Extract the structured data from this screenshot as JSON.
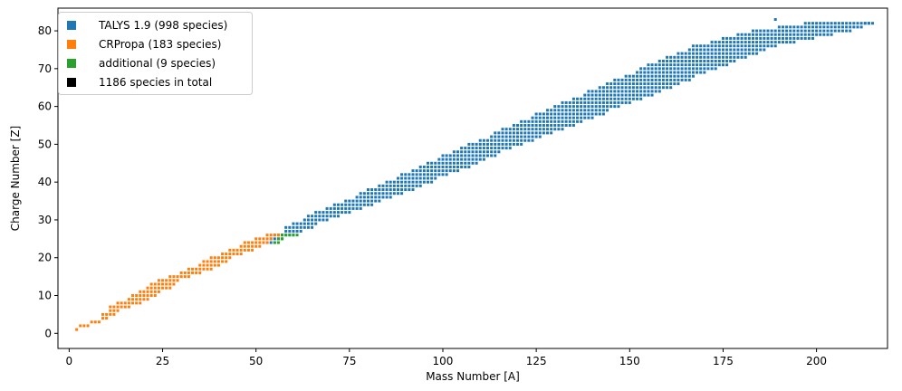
{
  "chart_data": {
    "type": "scatter",
    "title": "",
    "xlabel": "Mass Number [A]",
    "ylabel": "Charge Number [Z]",
    "xlim": [
      -3,
      219
    ],
    "ylim": [
      -4,
      86
    ],
    "xticks": [
      0,
      25,
      50,
      75,
      100,
      125,
      150,
      175,
      200
    ],
    "yticks": [
      0,
      10,
      20,
      30,
      40,
      50,
      60,
      70,
      80
    ],
    "grid": false,
    "legend_position": "top-left",
    "legend": [
      {
        "label": "TALYS 1.9 (998 species)",
        "color": "#1f77b4"
      },
      {
        "label": "CRPropa (183 species)",
        "color": "#ff7f0e"
      },
      {
        "label": "additional (9 species)",
        "color": "#2ca02c"
      },
      {
        "label": "1186 species in total",
        "color": "#000000"
      }
    ],
    "series": [
      {
        "color": "#1f77b4",
        "z_range": [
          24,
          82
        ],
        "band_from_z": 24,
        "band_center": [
          [
            24,
            53.5
          ],
          [
            30,
            65.5
          ],
          [
            40,
            91
          ],
          [
            50,
            114
          ],
          [
            60,
            139
          ],
          [
            70,
            163
          ],
          [
            76,
            178
          ],
          [
            80,
            196
          ],
          [
            82,
            206
          ]
        ],
        "band_halfwidth": [
          [
            24,
            1.5
          ],
          [
            30,
            4
          ],
          [
            40,
            6
          ],
          [
            50,
            7
          ],
          [
            60,
            9
          ],
          [
            70,
            10
          ],
          [
            76,
            11
          ],
          [
            80,
            13
          ],
          [
            82,
            9
          ]
        ],
        "note_points": [
          [
            214,
            82
          ],
          [
            213,
            82
          ],
          [
            189,
            83
          ]
        ]
      },
      {
        "color": "#ff7f0e",
        "z_range": [
          1,
          26
        ],
        "band_center": [
          [
            1,
            2.5
          ],
          [
            2,
            4
          ],
          [
            4,
            9
          ],
          [
            6,
            11.5
          ],
          [
            8,
            15.5
          ],
          [
            10,
            20
          ],
          [
            14,
            27
          ],
          [
            16,
            33
          ],
          [
            18,
            37
          ],
          [
            20,
            41
          ],
          [
            22,
            46
          ],
          [
            24,
            50
          ],
          [
            26,
            54.5
          ]
        ],
        "band_halfwidth": [
          [
            1,
            0.5
          ],
          [
            2,
            1
          ],
          [
            4,
            1
          ],
          [
            6,
            2
          ],
          [
            8,
            3
          ],
          [
            10,
            3
          ],
          [
            14,
            3
          ],
          [
            16,
            3
          ],
          [
            18,
            3
          ],
          [
            20,
            3
          ],
          [
            22,
            3
          ],
          [
            24,
            3
          ],
          [
            26,
            1.5
          ]
        ]
      },
      {
        "color": "#2ca02c",
        "points": [
          [
            55,
            24
          ],
          [
            56,
            24
          ],
          [
            56,
            25
          ],
          [
            57,
            25
          ],
          [
            57,
            26
          ],
          [
            58,
            26
          ],
          [
            59,
            26
          ],
          [
            60,
            26
          ],
          [
            61,
            26
          ]
        ]
      }
    ]
  }
}
